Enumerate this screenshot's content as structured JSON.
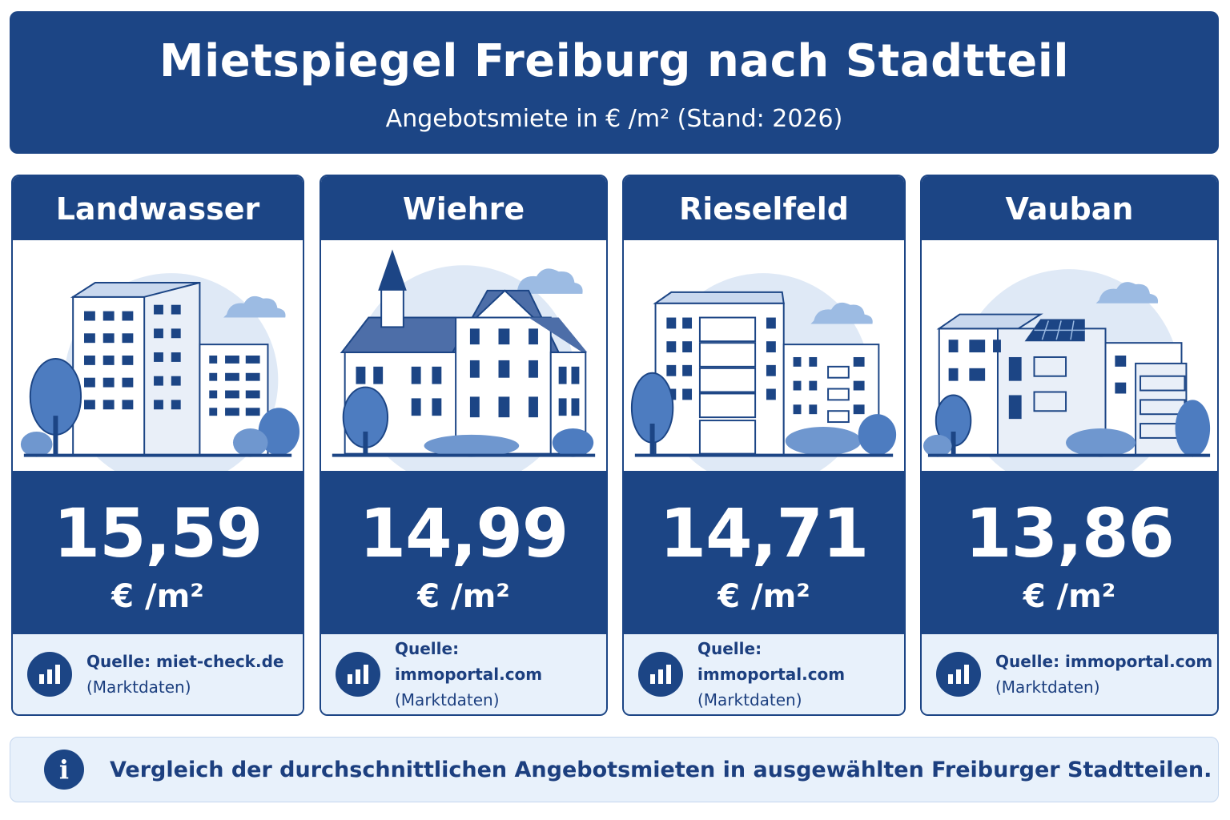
{
  "header": {
    "title": "Mietspiegel Freiburg nach Stadtteil",
    "subtitle": "Angebotsmiete in € /m²  (Stand: 2026)"
  },
  "cards": [
    {
      "name": "Landwasser",
      "price": "15,59",
      "unit": "€ /m²",
      "source": "Quelle:  miet-check.de",
      "note": "(Marktdaten)",
      "icon": "apartment-blocks-illustration"
    },
    {
      "name": "Wiehre",
      "price": "14,99",
      "unit": "€ /m²",
      "source": "Quelle:  immoportal.com",
      "note": "(Marktdaten)",
      "icon": "historic-villa-illustration"
    },
    {
      "name": "Rieselfeld",
      "price": "14,71",
      "unit": "€ /m²",
      "source": "Quelle:  immoportal.com",
      "note": "(Marktdaten)",
      "icon": "modern-apartments-illustration"
    },
    {
      "name": "Vauban",
      "price": "13,86",
      "unit": "€ /m²",
      "source": "Quelle:  immoportal.com",
      "note": "(Marktdaten)",
      "icon": "eco-housing-illustration"
    }
  ],
  "footer": {
    "text": "Vergleich der durchschnittlichen Angebotsmieten in ausgewählten Freiburger Stadtteilen.",
    "icon": "info-icon"
  },
  "colors": {
    "primary": "#1c4585",
    "light": "#e8f1fb",
    "sky": "#dbe8f7"
  }
}
